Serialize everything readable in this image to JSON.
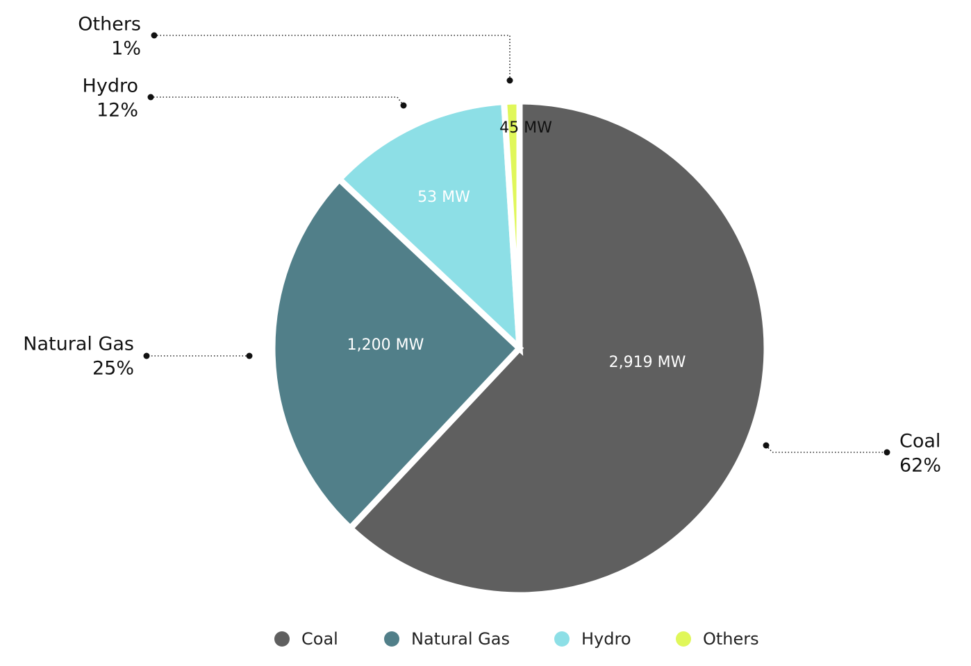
{
  "chart_data": {
    "type": "pie",
    "categories": [
      "Coal",
      "Natural Gas",
      "Hydro",
      "Others"
    ],
    "values": [
      62,
      25,
      12,
      1
    ],
    "value_labels": [
      "62%",
      "25%",
      "12%",
      "1%"
    ],
    "mw": [
      2919,
      1200,
      53,
      45
    ],
    "mw_labels": [
      "2,919 MW",
      "1,200 MW",
      "53 MW",
      "45 MW"
    ],
    "colors": [
      "#5f5f5f",
      "#517f89",
      "#8ddfe6",
      "#e0f75a"
    ],
    "legend": "bottom"
  }
}
